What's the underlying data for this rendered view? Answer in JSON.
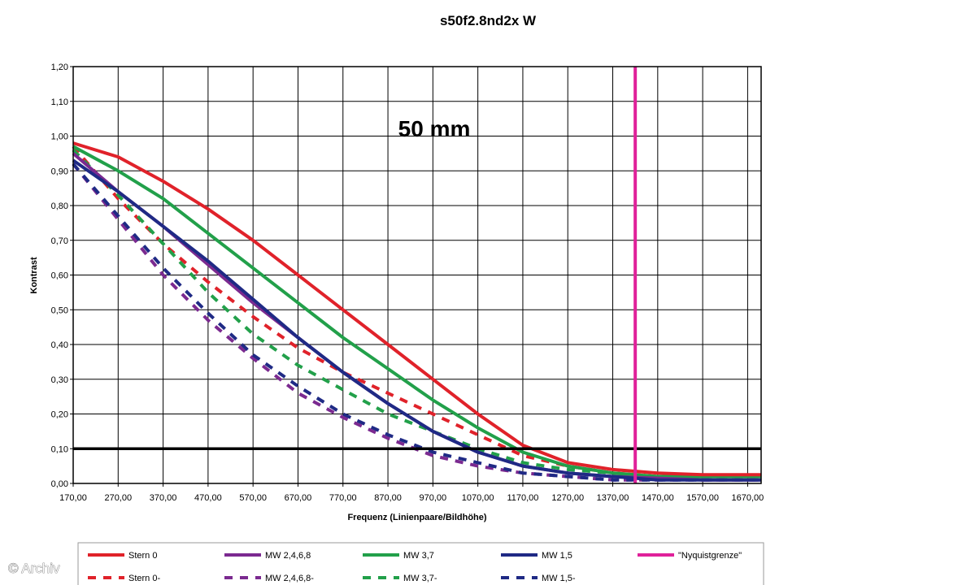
{
  "watermark": "© Archiv",
  "chart_data": {
    "type": "line",
    "title": "s50f2.8nd2x W",
    "annotation": "50 mm",
    "xlabel": "Frequenz (Linienpaare/Bildhöhe)",
    "ylabel": "Kontrast",
    "xlim": [
      170,
      1700
    ],
    "ylim": [
      0,
      1.2
    ],
    "x_ticks": [
      "170,00",
      "270,00",
      "370,00",
      "470,00",
      "570,00",
      "670,00",
      "770,00",
      "870,00",
      "970,00",
      "1070,00",
      "1170,00",
      "1270,00",
      "1370,00",
      "1470,00",
      "1570,00",
      "1670,00"
    ],
    "y_ticks": [
      "0,00",
      "0,10",
      "0,20",
      "0,30",
      "0,40",
      "0,50",
      "0,60",
      "0,70",
      "0,80",
      "0,90",
      "1,00",
      "1,10",
      "1,20"
    ],
    "grid": true,
    "legend_position": "bottom",
    "reference_lines": [
      {
        "orientation": "horizontal",
        "value": 0.1,
        "color": "#000000"
      },
      {
        "orientation": "vertical",
        "value": 1420,
        "color": "#e0219a",
        "name": "\"Nyquistgrenze\""
      }
    ],
    "series": [
      {
        "name": "Stern 0",
        "color": "#e0222a",
        "dash": false,
        "x": [
          170,
          270,
          370,
          470,
          570,
          670,
          770,
          870,
          970,
          1070,
          1170,
          1270,
          1370,
          1470,
          1570,
          1700
        ],
        "y": [
          0.98,
          0.94,
          0.87,
          0.79,
          0.7,
          0.6,
          0.5,
          0.4,
          0.3,
          0.2,
          0.11,
          0.06,
          0.04,
          0.03,
          0.025,
          0.025
        ]
      },
      {
        "name": "MW 2,4,6,8",
        "color": "#7b2a90",
        "dash": false,
        "x": [
          170,
          270,
          370,
          470,
          570,
          670,
          770,
          870,
          970,
          1070,
          1170,
          1270,
          1370,
          1470,
          1570,
          1700
        ],
        "y": [
          0.95,
          0.84,
          0.74,
          0.63,
          0.52,
          0.42,
          0.32,
          0.23,
          0.15,
          0.09,
          0.05,
          0.03,
          0.02,
          0.015,
          0.01,
          0.01
        ]
      },
      {
        "name": "MW 3,7",
        "color": "#22a04a",
        "dash": false,
        "x": [
          170,
          270,
          370,
          470,
          570,
          670,
          770,
          870,
          970,
          1070,
          1170,
          1270,
          1370,
          1470,
          1570,
          1700
        ],
        "y": [
          0.97,
          0.9,
          0.82,
          0.72,
          0.62,
          0.52,
          0.42,
          0.33,
          0.24,
          0.16,
          0.09,
          0.05,
          0.03,
          0.02,
          0.02,
          0.02
        ]
      },
      {
        "name": "MW 1,5",
        "color": "#1f2a85",
        "dash": false,
        "x": [
          170,
          270,
          370,
          470,
          570,
          670,
          770,
          870,
          970,
          1070,
          1170,
          1270,
          1370,
          1470,
          1570,
          1700
        ],
        "y": [
          0.93,
          0.84,
          0.74,
          0.64,
          0.53,
          0.42,
          0.32,
          0.23,
          0.15,
          0.09,
          0.05,
          0.03,
          0.02,
          0.01,
          0.01,
          0.01
        ]
      },
      {
        "name": "Stern 0-",
        "color": "#e0222a",
        "dash": true,
        "x": [
          170,
          270,
          370,
          470,
          570,
          670,
          770,
          870,
          970,
          1070,
          1170,
          1270,
          1370,
          1470,
          1570,
          1700
        ],
        "y": [
          0.97,
          0.82,
          0.69,
          0.58,
          0.48,
          0.39,
          0.32,
          0.26,
          0.2,
          0.14,
          0.08,
          0.05,
          0.03,
          0.02,
          0.02,
          0.02
        ]
      },
      {
        "name": "MW 2,4,6,8-",
        "color": "#7b2a90",
        "dash": true,
        "x": [
          170,
          270,
          370,
          470,
          570,
          670,
          770,
          870,
          970,
          1070,
          1170,
          1270,
          1370,
          1470,
          1570,
          1700
        ],
        "y": [
          0.92,
          0.76,
          0.6,
          0.47,
          0.36,
          0.26,
          0.19,
          0.13,
          0.08,
          0.05,
          0.03,
          0.02,
          0.01,
          0.01,
          0.01,
          0.01
        ]
      },
      {
        "name": "MW 3,7-",
        "color": "#22a04a",
        "dash": true,
        "x": [
          170,
          270,
          370,
          470,
          570,
          670,
          770,
          870,
          970,
          1070,
          1170,
          1270,
          1370,
          1470,
          1570,
          1700
        ],
        "y": [
          0.96,
          0.83,
          0.69,
          0.55,
          0.43,
          0.34,
          0.27,
          0.2,
          0.15,
          0.1,
          0.06,
          0.04,
          0.03,
          0.02,
          0.02,
          0.02
        ]
      },
      {
        "name": "MW 1,5-",
        "color": "#1f2a85",
        "dash": true,
        "x": [
          170,
          270,
          370,
          470,
          570,
          670,
          770,
          870,
          970,
          1070,
          1170,
          1270,
          1370,
          1470,
          1570,
          1700
        ],
        "y": [
          0.92,
          0.77,
          0.62,
          0.49,
          0.37,
          0.28,
          0.2,
          0.14,
          0.09,
          0.06,
          0.03,
          0.02,
          0.01,
          0.01,
          0.01,
          0.01
        ]
      }
    ]
  }
}
